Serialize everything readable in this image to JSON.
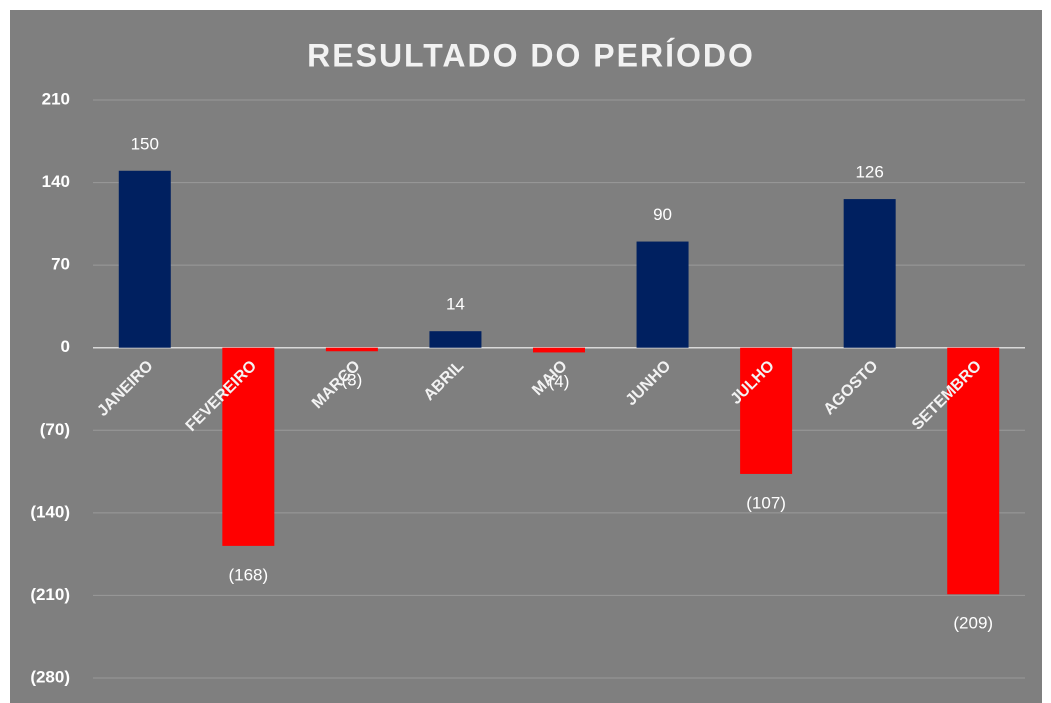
{
  "chart_data": {
    "type": "bar",
    "title": "RESULTADO DO PERÍODO",
    "categories": [
      "JANEIRO",
      "FEVEREIRO",
      "MARÇO",
      "ABRIL",
      "MAIO",
      "JUNHO",
      "JULHO",
      "AGOSTO",
      "SETEMBRO"
    ],
    "values": [
      150,
      -168,
      -3,
      14,
      -4,
      90,
      -107,
      126,
      -209
    ],
    "value_labels": [
      "150",
      "(168)",
      "(3)",
      "14",
      "(4)",
      "90",
      "(107)",
      "126",
      "(209)"
    ],
    "positive_color": "#002060",
    "negative_color": "#ff0000",
    "ylim": [
      -280,
      210
    ],
    "yticks": [
      210,
      140,
      70,
      0,
      {
        "value": -70,
        "label": "(70)"
      },
      {
        "value": -140,
        "label": "(140)"
      },
      {
        "value": -210,
        "label": "(210)"
      },
      {
        "value": -280,
        "label": "(280)"
      }
    ],
    "grid": true
  }
}
